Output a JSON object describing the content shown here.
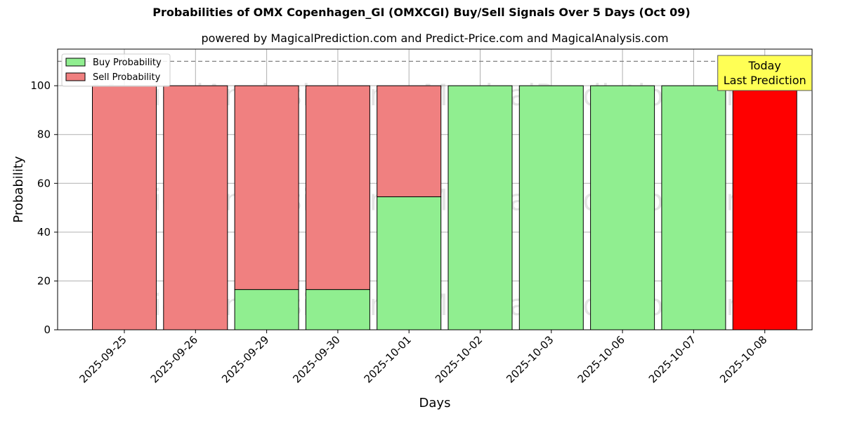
{
  "chart_data": {
    "type": "bar",
    "stacked": true,
    "title": "Probabilities of OMX Copenhagen_GI (OMXCGI) Buy/Sell Signals Over 5 Days (Oct 09)",
    "subtitle": "powered by MagicalPrediction.com and Predict-Price.com and MagicalAnalysis.com",
    "xlabel": "Days",
    "ylabel": "Probability",
    "ylim": [
      0,
      115
    ],
    "yticks": [
      0,
      20,
      40,
      60,
      80,
      100
    ],
    "grid": true,
    "legend_position": "top-left",
    "categories": [
      "2025-09-25",
      "2025-09-26",
      "2025-09-29",
      "2025-09-30",
      "2025-10-01",
      "2025-10-02",
      "2025-10-03",
      "2025-10-06",
      "2025-10-07",
      "2025-10-08"
    ],
    "series": [
      {
        "name": "Buy Probability",
        "color": "#90ee90",
        "values": [
          0,
          0,
          16.5,
          16.5,
          54.5,
          100,
          100,
          100,
          100,
          0
        ]
      },
      {
        "name": "Sell Probability",
        "color": "#f08080",
        "values": [
          100,
          100,
          83.5,
          83.5,
          45.5,
          0,
          0,
          0,
          0,
          100
        ]
      }
    ],
    "highlight": {
      "category": "2025-10-08",
      "color": "#ff0000"
    },
    "reference_line": {
      "y": 110,
      "style": "dashed",
      "color": "#808080"
    },
    "annotation": {
      "lines": [
        "Today",
        "Last Prediction"
      ],
      "category": "2025-10-08",
      "background": "#ffff55"
    },
    "watermarks": [
      "MagicalAnalysis.com",
      "MagicalPrediction.com"
    ]
  }
}
